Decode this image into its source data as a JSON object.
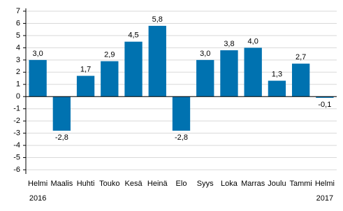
{
  "chart_data": {
    "type": "bar",
    "categories": [
      "Helmi",
      "Maalis",
      "Huhti",
      "Touko",
      "Kesä",
      "Heinä",
      "Elo",
      "Syys",
      "Loka",
      "Marras",
      "Joulu",
      "Tammi",
      "Helmi"
    ],
    "year_labels": [
      "2016",
      null,
      null,
      null,
      null,
      null,
      null,
      null,
      null,
      null,
      null,
      null,
      "2017"
    ],
    "values": [
      3.0,
      -2.8,
      1.7,
      2.9,
      4.5,
      5.8,
      -2.8,
      3.0,
      3.8,
      4.0,
      1.3,
      2.7,
      -0.1
    ],
    "value_labels": [
      "3,0",
      "-2,8",
      "1,7",
      "2,9",
      "4,5",
      "5,8",
      "-2,8",
      "3,0",
      "3,8",
      "4,0",
      "1,3",
      "2,7",
      "-0,1"
    ],
    "color": "#0072b0",
    "ylim": [
      -6,
      7
    ],
    "yticks": [
      7,
      6,
      5,
      4,
      3,
      2,
      1,
      0,
      -1,
      -2,
      -3,
      -4,
      -5,
      -6
    ],
    "grid": true
  }
}
